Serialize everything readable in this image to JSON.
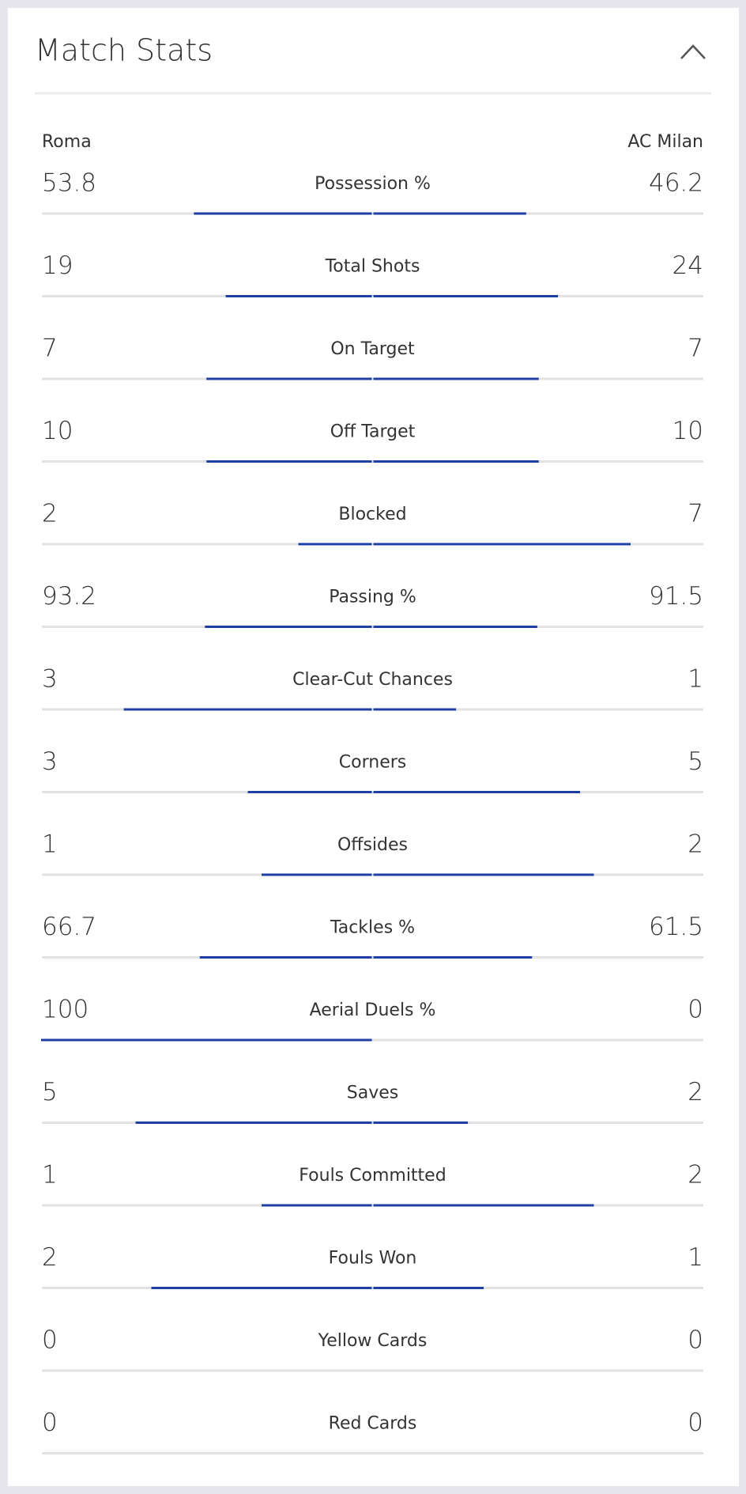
{
  "header": {
    "title": "Match Stats"
  },
  "teams": {
    "home": "Roma",
    "away": "AC Milan"
  },
  "stats": [
    {
      "label": "Possession %",
      "home": 53.8,
      "away": 46.2
    },
    {
      "label": "Total Shots",
      "home": 19,
      "away": 24
    },
    {
      "label": "On Target",
      "home": 7,
      "away": 7
    },
    {
      "label": "Off Target",
      "home": 10,
      "away": 10
    },
    {
      "label": "Blocked",
      "home": 2,
      "away": 7
    },
    {
      "label": "Passing %",
      "home": 93.2,
      "away": 91.5
    },
    {
      "label": "Clear-Cut Chances",
      "home": 3,
      "away": 1
    },
    {
      "label": "Corners",
      "home": 3,
      "away": 5
    },
    {
      "label": "Offsides",
      "home": 1,
      "away": 2
    },
    {
      "label": "Tackles %",
      "home": 66.7,
      "away": 61.5
    },
    {
      "label": "Aerial Duels %",
      "home": 100,
      "away": 0
    },
    {
      "label": "Saves",
      "home": 5,
      "away": 2
    },
    {
      "label": "Fouls Committed",
      "home": 1,
      "away": 2
    },
    {
      "label": "Fouls Won",
      "home": 2,
      "away": 1
    },
    {
      "label": "Yellow Cards",
      "home": 0,
      "away": 0
    },
    {
      "label": "Red Cards",
      "home": 0,
      "away": 0
    }
  ]
}
